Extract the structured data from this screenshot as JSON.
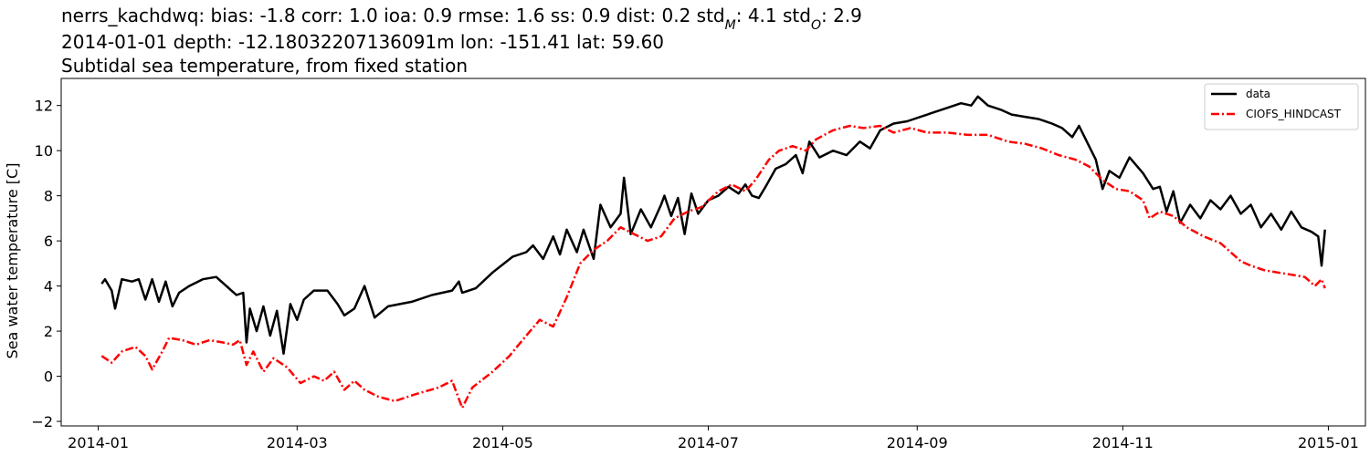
{
  "chart_data": {
    "type": "line",
    "title": {
      "line1_prefix": "nerrs_kachdwq: bias: -1.8  corr: 1.0  ioa: 0.9  rmse: 1.6  ss: 0.9  dist: 0.2  std",
      "std_m_sub": "M",
      "std_m_value": ": 4.1  std",
      "std_o_sub": "O",
      "std_o_value": ": 2.9",
      "line2": "2014-01-01 depth: -12.18032207136091m lon: -151.41 lat: 59.60",
      "line3": "Subtidal sea temperature, from fixed station"
    },
    "xlabel": "",
    "ylabel": "Sea water temperature [C]",
    "xlim": [
      "2013-12-21",
      "2015-01-12"
    ],
    "ylim": [
      -2.2,
      13.2
    ],
    "x_ticks": [
      "2014-01",
      "2014-03",
      "2014-05",
      "2014-07",
      "2014-09",
      "2014-11",
      "2015-01"
    ],
    "y_ticks": [
      -2,
      0,
      2,
      4,
      6,
      8,
      10,
      12
    ],
    "grid": false,
    "legend_position": "top-right",
    "series": [
      {
        "name": "data",
        "color": "#000000",
        "style": "solid",
        "points": [
          [
            "2014-01-02",
            4.1
          ],
          [
            "2014-01-03",
            4.3
          ],
          [
            "2014-01-05",
            3.8
          ],
          [
            "2014-01-06",
            3.0
          ],
          [
            "2014-01-08",
            4.3
          ],
          [
            "2014-01-11",
            4.2
          ],
          [
            "2014-01-13",
            4.3
          ],
          [
            "2014-01-15",
            3.4
          ],
          [
            "2014-01-17",
            4.3
          ],
          [
            "2014-01-19",
            3.3
          ],
          [
            "2014-01-21",
            4.2
          ],
          [
            "2014-01-23",
            3.1
          ],
          [
            "2014-01-25",
            3.7
          ],
          [
            "2014-01-28",
            4.0
          ],
          [
            "2014-02-01",
            4.3
          ],
          [
            "2014-02-05",
            4.4
          ],
          [
            "2014-02-08",
            4.0
          ],
          [
            "2014-02-11",
            3.6
          ],
          [
            "2014-02-13",
            3.7
          ],
          [
            "2014-02-14",
            1.5
          ],
          [
            "2014-02-15",
            3.0
          ],
          [
            "2014-02-17",
            2.0
          ],
          [
            "2014-02-19",
            3.1
          ],
          [
            "2014-02-21",
            1.8
          ],
          [
            "2014-02-23",
            2.9
          ],
          [
            "2014-02-25",
            1.0
          ],
          [
            "2014-02-27",
            3.2
          ],
          [
            "2014-03-01",
            2.5
          ],
          [
            "2014-03-03",
            3.4
          ],
          [
            "2014-03-06",
            3.8
          ],
          [
            "2014-03-10",
            3.8
          ],
          [
            "2014-03-13",
            3.2
          ],
          [
            "2014-03-15",
            2.7
          ],
          [
            "2014-03-18",
            3.0
          ],
          [
            "2014-03-21",
            4.0
          ],
          [
            "2014-03-24",
            2.6
          ],
          [
            "2014-03-28",
            3.1
          ],
          [
            "2014-04-04",
            3.3
          ],
          [
            "2014-04-10",
            3.6
          ],
          [
            "2014-04-16",
            3.8
          ],
          [
            "2014-04-18",
            4.2
          ],
          [
            "2014-04-19",
            3.7
          ],
          [
            "2014-04-23",
            3.9
          ],
          [
            "2014-04-28",
            4.6
          ],
          [
            "2014-05-04",
            5.3
          ],
          [
            "2014-05-08",
            5.5
          ],
          [
            "2014-05-10",
            5.8
          ],
          [
            "2014-05-13",
            5.2
          ],
          [
            "2014-05-16",
            6.2
          ],
          [
            "2014-05-18",
            5.4
          ],
          [
            "2014-05-20",
            6.5
          ],
          [
            "2014-05-23",
            5.5
          ],
          [
            "2014-05-25",
            6.5
          ],
          [
            "2014-05-28",
            5.2
          ],
          [
            "2014-05-30",
            7.6
          ],
          [
            "2014-06-02",
            6.6
          ],
          [
            "2014-06-05",
            7.2
          ],
          [
            "2014-06-06",
            8.8
          ],
          [
            "2014-06-08",
            6.3
          ],
          [
            "2014-06-11",
            7.4
          ],
          [
            "2014-06-14",
            6.6
          ],
          [
            "2014-06-17",
            7.6
          ],
          [
            "2014-06-18",
            8.0
          ],
          [
            "2014-06-20",
            7.1
          ],
          [
            "2014-06-22",
            7.9
          ],
          [
            "2014-06-24",
            6.3
          ],
          [
            "2014-06-26",
            8.1
          ],
          [
            "2014-06-28",
            7.2
          ],
          [
            "2014-07-01",
            7.8
          ],
          [
            "2014-07-04",
            8.0
          ],
          [
            "2014-07-07",
            8.4
          ],
          [
            "2014-07-10",
            8.1
          ],
          [
            "2014-07-12",
            8.5
          ],
          [
            "2014-07-14",
            8.0
          ],
          [
            "2014-07-16",
            7.9
          ],
          [
            "2014-07-18",
            8.4
          ],
          [
            "2014-07-21",
            9.2
          ],
          [
            "2014-07-24",
            9.4
          ],
          [
            "2014-07-27",
            9.8
          ],
          [
            "2014-07-29",
            9.0
          ],
          [
            "2014-07-31",
            10.4
          ],
          [
            "2014-08-03",
            9.7
          ],
          [
            "2014-08-07",
            10.0
          ],
          [
            "2014-08-11",
            9.8
          ],
          [
            "2014-08-15",
            10.4
          ],
          [
            "2014-08-18",
            10.1
          ],
          [
            "2014-08-21",
            10.9
          ],
          [
            "2014-08-25",
            11.2
          ],
          [
            "2014-08-29",
            11.3
          ],
          [
            "2014-09-02",
            11.5
          ],
          [
            "2014-09-06",
            11.7
          ],
          [
            "2014-09-10",
            11.9
          ],
          [
            "2014-09-14",
            12.1
          ],
          [
            "2014-09-17",
            12.0
          ],
          [
            "2014-09-19",
            12.4
          ],
          [
            "2014-09-22",
            12.0
          ],
          [
            "2014-09-26",
            11.8
          ],
          [
            "2014-09-29",
            11.6
          ],
          [
            "2014-10-03",
            11.5
          ],
          [
            "2014-10-07",
            11.4
          ],
          [
            "2014-10-11",
            11.2
          ],
          [
            "2014-10-14",
            11.0
          ],
          [
            "2014-10-17",
            10.6
          ],
          [
            "2014-10-19",
            11.1
          ],
          [
            "2014-10-22",
            10.2
          ],
          [
            "2014-10-24",
            9.6
          ],
          [
            "2014-10-26",
            8.3
          ],
          [
            "2014-10-28",
            9.1
          ],
          [
            "2014-10-31",
            8.8
          ],
          [
            "2014-11-03",
            9.7
          ],
          [
            "2014-11-07",
            9.0
          ],
          [
            "2014-11-10",
            8.3
          ],
          [
            "2014-11-12",
            8.4
          ],
          [
            "2014-11-14",
            7.3
          ],
          [
            "2014-11-16",
            8.2
          ],
          [
            "2014-11-18",
            6.8
          ],
          [
            "2014-11-21",
            7.6
          ],
          [
            "2014-11-24",
            7.0
          ],
          [
            "2014-11-27",
            7.8
          ],
          [
            "2014-11-30",
            7.4
          ],
          [
            "2014-12-03",
            8.0
          ],
          [
            "2014-12-06",
            7.2
          ],
          [
            "2014-12-09",
            7.6
          ],
          [
            "2014-12-12",
            6.6
          ],
          [
            "2014-12-15",
            7.2
          ],
          [
            "2014-12-18",
            6.5
          ],
          [
            "2014-12-21",
            7.3
          ],
          [
            "2014-12-24",
            6.6
          ],
          [
            "2014-12-27",
            6.4
          ],
          [
            "2014-12-29",
            6.2
          ],
          [
            "2014-12-30",
            4.9
          ],
          [
            "2014-12-31",
            6.5
          ]
        ]
      },
      {
        "name": "CIOFS_HINDCAST",
        "color": "#ff0000",
        "style": "dashdot",
        "points": [
          [
            "2014-01-02",
            0.9
          ],
          [
            "2014-01-05",
            0.6
          ],
          [
            "2014-01-08",
            1.1
          ],
          [
            "2014-01-12",
            1.3
          ],
          [
            "2014-01-15",
            0.9
          ],
          [
            "2014-01-17",
            0.3
          ],
          [
            "2014-01-20",
            1.1
          ],
          [
            "2014-01-22",
            1.7
          ],
          [
            "2014-01-26",
            1.6
          ],
          [
            "2014-01-30",
            1.4
          ],
          [
            "2014-02-03",
            1.6
          ],
          [
            "2014-02-07",
            1.5
          ],
          [
            "2014-02-10",
            1.4
          ],
          [
            "2014-02-12",
            1.6
          ],
          [
            "2014-02-14",
            0.5
          ],
          [
            "2014-02-16",
            1.1
          ],
          [
            "2014-02-19",
            0.2
          ],
          [
            "2014-02-22",
            0.8
          ],
          [
            "2014-02-26",
            0.4
          ],
          [
            "2014-03-02",
            -0.3
          ],
          [
            "2014-03-06",
            0.0
          ],
          [
            "2014-03-09",
            -0.2
          ],
          [
            "2014-03-12",
            0.2
          ],
          [
            "2014-03-15",
            -0.6
          ],
          [
            "2014-03-18",
            -0.2
          ],
          [
            "2014-03-21",
            -0.6
          ],
          [
            "2014-03-25",
            -0.9
          ],
          [
            "2014-03-30",
            -1.1
          ],
          [
            "2014-04-05",
            -0.8
          ],
          [
            "2014-04-12",
            -0.5
          ],
          [
            "2014-04-16",
            -0.2
          ],
          [
            "2014-04-19",
            -1.4
          ],
          [
            "2014-04-22",
            -0.5
          ],
          [
            "2014-04-28",
            0.2
          ],
          [
            "2014-05-03",
            0.9
          ],
          [
            "2014-05-08",
            1.8
          ],
          [
            "2014-05-12",
            2.5
          ],
          [
            "2014-05-16",
            2.2
          ],
          [
            "2014-05-20",
            3.5
          ],
          [
            "2014-05-24",
            5.0
          ],
          [
            "2014-05-28",
            5.6
          ],
          [
            "2014-06-01",
            6.0
          ],
          [
            "2014-06-05",
            6.6
          ],
          [
            "2014-06-09",
            6.3
          ],
          [
            "2014-06-13",
            6.0
          ],
          [
            "2014-06-17",
            6.2
          ],
          [
            "2014-06-21",
            7.0
          ],
          [
            "2014-06-25",
            7.3
          ],
          [
            "2014-06-29",
            7.5
          ],
          [
            "2014-07-04",
            8.2
          ],
          [
            "2014-07-08",
            8.5
          ],
          [
            "2014-07-12",
            8.2
          ],
          [
            "2014-07-15",
            8.7
          ],
          [
            "2014-07-19",
            9.6
          ],
          [
            "2014-07-22",
            10.0
          ],
          [
            "2014-07-26",
            10.2
          ],
          [
            "2014-07-30",
            10.0
          ],
          [
            "2014-08-02",
            10.5
          ],
          [
            "2014-08-07",
            10.9
          ],
          [
            "2014-08-12",
            11.1
          ],
          [
            "2014-08-16",
            11.0
          ],
          [
            "2014-08-21",
            11.1
          ],
          [
            "2014-08-25",
            10.8
          ],
          [
            "2014-08-30",
            11.0
          ],
          [
            "2014-09-04",
            10.8
          ],
          [
            "2014-09-10",
            10.8
          ],
          [
            "2014-09-16",
            10.7
          ],
          [
            "2014-09-22",
            10.7
          ],
          [
            "2014-09-28",
            10.4
          ],
          [
            "2014-10-03",
            10.3
          ],
          [
            "2014-10-08",
            10.1
          ],
          [
            "2014-10-13",
            9.8
          ],
          [
            "2014-10-18",
            9.6
          ],
          [
            "2014-10-22",
            9.3
          ],
          [
            "2014-10-26",
            8.7
          ],
          [
            "2014-10-30",
            8.3
          ],
          [
            "2014-11-03",
            8.2
          ],
          [
            "2014-11-07",
            7.8
          ],
          [
            "2014-11-09",
            7.0
          ],
          [
            "2014-11-12",
            7.3
          ],
          [
            "2014-11-16",
            7.1
          ],
          [
            "2014-11-20",
            6.6
          ],
          [
            "2014-11-25",
            6.2
          ],
          [
            "2014-11-30",
            5.9
          ],
          [
            "2014-12-03",
            5.5
          ],
          [
            "2014-12-06",
            5.1
          ],
          [
            "2014-12-09",
            4.9
          ],
          [
            "2014-12-13",
            4.7
          ],
          [
            "2014-12-17",
            4.6
          ],
          [
            "2014-12-21",
            4.5
          ],
          [
            "2014-12-25",
            4.4
          ],
          [
            "2014-12-28",
            4.0
          ],
          [
            "2014-12-30",
            4.3
          ],
          [
            "2014-12-31",
            3.9
          ]
        ]
      }
    ]
  }
}
